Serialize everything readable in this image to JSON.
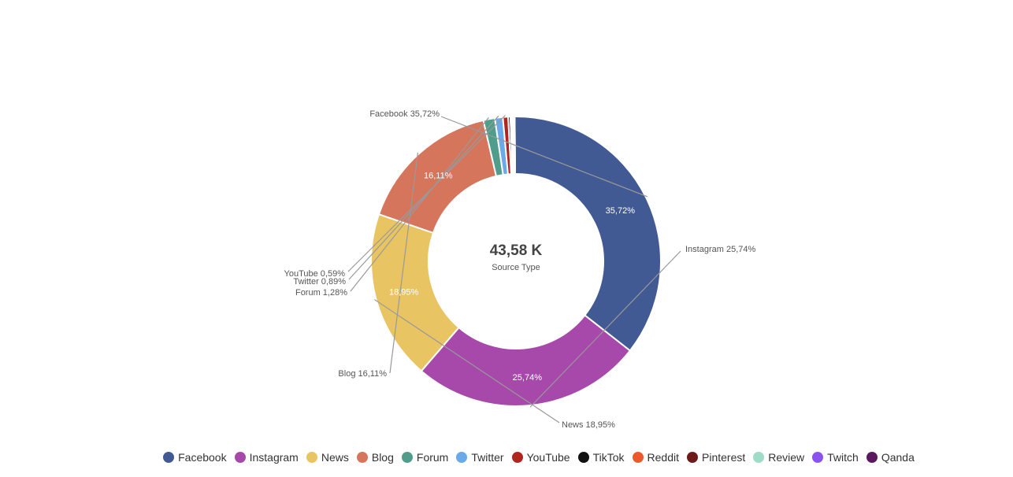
{
  "chart_data": {
    "type": "pie",
    "variant": "donut",
    "center": {
      "value": "43,58 K",
      "label": "Source Type"
    },
    "slices": [
      {
        "name": "Facebook",
        "value": 35.72,
        "pct_label": "35,72%",
        "color": "#425a93",
        "show_inside": true,
        "ext_label": "Facebook 35,72%"
      },
      {
        "name": "Instagram",
        "value": 25.74,
        "pct_label": "25,74%",
        "color": "#a748ab",
        "show_inside": true,
        "ext_label": "Instagram 25,74%"
      },
      {
        "name": "News",
        "value": 18.95,
        "pct_label": "18,95%",
        "color": "#e9c462",
        "show_inside": true,
        "ext_label": "News 18,95%"
      },
      {
        "name": "Blog",
        "value": 16.11,
        "pct_label": "16,11%",
        "color": "#d5765c",
        "show_inside": true,
        "ext_label": "Blog 16,11%"
      },
      {
        "name": "Forum",
        "value": 1.28,
        "pct_label": "1,28%",
        "color": "#4f9d8a",
        "show_inside": false,
        "ext_label": "Forum 1,28%"
      },
      {
        "name": "Twitter",
        "value": 0.89,
        "pct_label": "0,89%",
        "color": "#6aa9ea",
        "show_inside": false,
        "ext_label": "Twitter 0,89%"
      },
      {
        "name": "YouTube",
        "value": 0.59,
        "pct_label": "0,59%",
        "color": "#b0261f",
        "show_inside": false,
        "ext_label": "YouTube 0,59%"
      },
      {
        "name": "TikTok",
        "value": 0.25,
        "pct_label": "",
        "color": "#111111",
        "show_inside": false,
        "ext_label": ""
      },
      {
        "name": "Reddit",
        "value": 0.15,
        "pct_label": "",
        "color": "#ec5a2c",
        "show_inside": false,
        "ext_label": ""
      },
      {
        "name": "Pinterest",
        "value": 0.12,
        "pct_label": "",
        "color": "#6e1a1a",
        "show_inside": false,
        "ext_label": ""
      },
      {
        "name": "Review",
        "value": 0.1,
        "pct_label": "",
        "color": "#9fdcc7",
        "show_inside": false,
        "ext_label": ""
      },
      {
        "name": "Twitch",
        "value": 0.06,
        "pct_label": "",
        "color": "#8a52f0",
        "show_inside": false,
        "ext_label": ""
      },
      {
        "name": "Qanda",
        "value": 0.04,
        "pct_label": "",
        "color": "#5b1860",
        "show_inside": false,
        "ext_label": ""
      }
    ],
    "legend": {
      "placement": "bottom",
      "items": [
        {
          "name": "Facebook",
          "color": "#425a93"
        },
        {
          "name": "Instagram",
          "color": "#a748ab"
        },
        {
          "name": "News",
          "color": "#e9c462"
        },
        {
          "name": "Blog",
          "color": "#d5765c"
        },
        {
          "name": "Forum",
          "color": "#4f9d8a"
        },
        {
          "name": "Twitter",
          "color": "#6aa9ea"
        },
        {
          "name": "YouTube",
          "color": "#b0261f"
        },
        {
          "name": "TikTok",
          "color": "#111111"
        },
        {
          "name": "Reddit",
          "color": "#ec5a2c"
        },
        {
          "name": "Pinterest",
          "color": "#6e1a1a"
        },
        {
          "name": "Review",
          "color": "#9fdcc7"
        },
        {
          "name": "Twitch",
          "color": "#8a52f0"
        },
        {
          "name": "Qanda",
          "color": "#5b1860"
        }
      ]
    }
  }
}
